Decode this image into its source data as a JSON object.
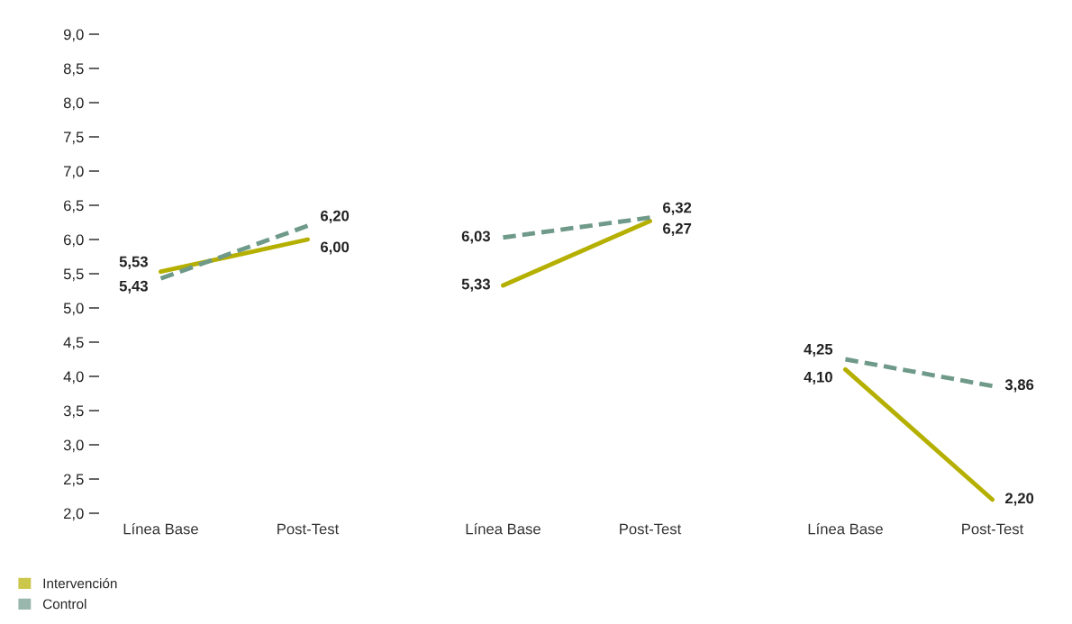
{
  "chart_data": [
    {
      "type": "line",
      "categories": [
        "Línea Base",
        "Post-Test"
      ],
      "ylim": [
        2,
        9
      ],
      "yticks": [
        {
          "value": 2,
          "label": "2,0"
        },
        {
          "value": 2.5,
          "label": "2,5"
        },
        {
          "value": 3,
          "label": "3,0"
        },
        {
          "value": 3.5,
          "label": "3,5"
        },
        {
          "value": 4,
          "label": "4,0"
        },
        {
          "value": 4.5,
          "label": "4,5"
        },
        {
          "value": 5,
          "label": "5,0"
        },
        {
          "value": 5.5,
          "label": "5,5"
        },
        {
          "value": 6,
          "label": "6,0"
        },
        {
          "value": 6.5,
          "label": "6,5"
        },
        {
          "value": 7,
          "label": "7,0"
        },
        {
          "value": 7.5,
          "label": "7,5"
        },
        {
          "value": 8,
          "label": "8,0"
        },
        {
          "value": 8.5,
          "label": "8,5"
        },
        {
          "value": 9,
          "label": "9,0"
        }
      ],
      "legend": "bottom left",
      "marker": "none",
      "series": [
        {
          "name": "Intervención",
          "color": "#b5b000",
          "line_style": "solid",
          "values": [
            5.53,
            6.0
          ],
          "value_labels": [
            "5,53",
            "6,00"
          ]
        },
        {
          "name": "Control",
          "color": "#6f9a8a",
          "line_style": "dashed",
          "values": [
            5.43,
            6.2
          ],
          "value_labels": [
            "5,43",
            "6,20"
          ]
        }
      ]
    },
    {
      "type": "line",
      "categories": [
        "Línea Base",
        "Post-Test"
      ],
      "ylim": [
        2,
        9
      ],
      "tick_labels": "x",
      "marker": "none",
      "series": [
        {
          "color": "#b5b000",
          "line_style": "solid",
          "values": [
            5.33,
            6.27
          ],
          "value_labels": [
            "5,33",
            "6,27"
          ]
        },
        {
          "color": "#6f9a8a",
          "line_style": "dashed",
          "values": [
            6.03,
            6.32
          ],
          "value_labels": [
            "6,03",
            "6,32"
          ]
        }
      ]
    },
    {
      "type": "line",
      "categories": [
        "Línea Base",
        "Post-Test"
      ],
      "ylim": [
        2,
        9
      ],
      "tick_labels": "x",
      "marker": "none",
      "series": [
        {
          "color": "#b5b000",
          "line_style": "solid",
          "values": [
            4.1,
            2.2
          ],
          "value_labels": [
            "4,10",
            "2,20"
          ]
        },
        {
          "color": "#6f9a8a",
          "line_style": "dashed",
          "values": [
            4.25,
            3.86
          ],
          "value_labels": [
            "4,25",
            "3,86"
          ]
        }
      ]
    }
  ]
}
